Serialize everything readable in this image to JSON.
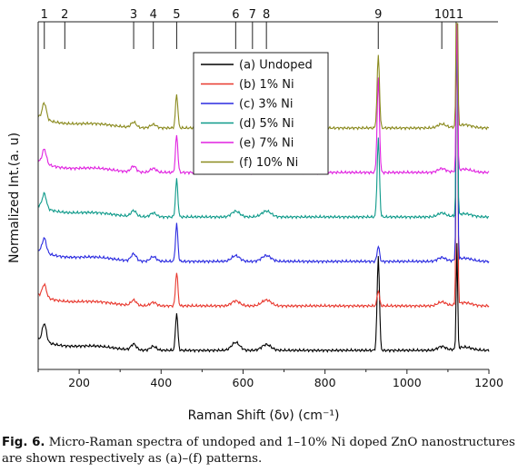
{
  "chart_data": {
    "type": "line",
    "xlabel": "Raman Shift (δν) (cm⁻¹)",
    "ylabel": "Normalized Int.(a. u)",
    "xlim": [
      100,
      1200
    ],
    "xticks": [
      200,
      400,
      600,
      800,
      1000,
      1200
    ],
    "peak_markers": [
      {
        "label": "1",
        "x": 115
      },
      {
        "label": "2",
        "x": 165
      },
      {
        "label": "3",
        "x": 333
      },
      {
        "label": "4",
        "x": 381
      },
      {
        "label": "5",
        "x": 438
      },
      {
        "label": "6",
        "x": 582
      },
      {
        "label": "7",
        "x": 623
      },
      {
        "label": "8",
        "x": 657
      },
      {
        "label": "9",
        "x": 930
      },
      {
        "label": "10",
        "x": 1085
      },
      {
        "label": "11",
        "x": 1120
      }
    ],
    "legend_position": "top-center",
    "series": [
      {
        "name": "(a) Undoped",
        "tag": "(a)",
        "color": "#000000",
        "offset": 0.0,
        "peak_scale": [
          1.0,
          1.0,
          1.0,
          1.0,
          1.1,
          1.8,
          1.0
        ]
      },
      {
        "name": "(b) 1% Ni",
        "tag": "(b)",
        "color": "#e8382e",
        "offset": 1.0,
        "peak_scale": [
          0.7,
          0.9,
          0.9,
          0.9,
          0.7,
          0.3,
          3.5
        ]
      },
      {
        "name": "(c) 3% Ni",
        "tag": "(c)",
        "color": "#2a2ae0",
        "offset": 2.0,
        "peak_scale": [
          0.8,
          1.2,
          1.2,
          1.0,
          0.8,
          0.3,
          3.0
        ]
      },
      {
        "name": "(d) 5% Ni",
        "tag": "(d)",
        "color": "#0e9a8a",
        "offset": 3.0,
        "peak_scale": [
          0.8,
          1.0,
          1.0,
          1.0,
          0.8,
          1.5,
          2.2
        ]
      },
      {
        "name": "(e) 7% Ni",
        "tag": "(e)",
        "color": "#e020e0",
        "offset": 4.0,
        "peak_scale": [
          0.8,
          1.0,
          1.0,
          1.0,
          0.8,
          1.8,
          1.8
        ]
      },
      {
        "name": "(f) 10% Ni",
        "tag": "(f)",
        "color": "#8a8a1e",
        "offset": 5.0,
        "peak_scale": [
          0.9,
          0.9,
          0.9,
          0.9,
          0.8,
          1.4,
          2.5
        ]
      }
    ]
  },
  "caption": {
    "label": "Fig. 6.",
    "text": "Micro-Raman spectra of undoped and 1–10% Ni doped ZnO nanostructures are shown respectively as (a)–(f) patterns."
  }
}
